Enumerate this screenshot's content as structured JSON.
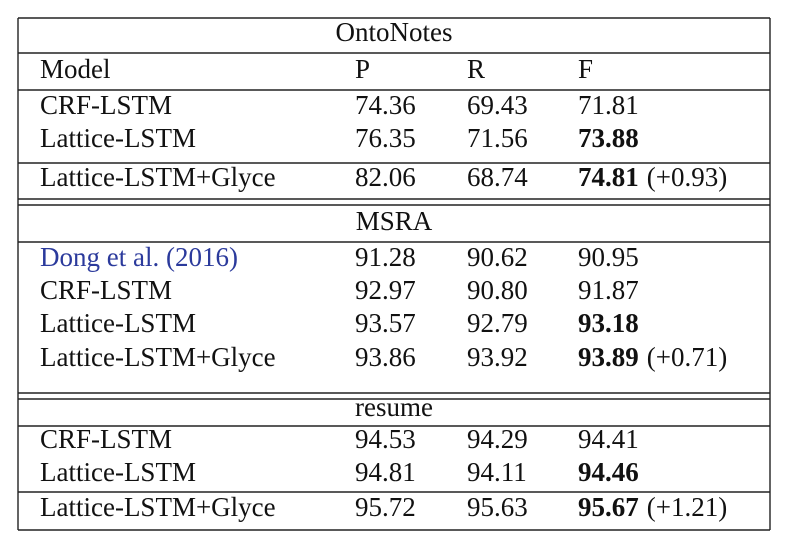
{
  "table": {
    "header": [
      "Model",
      "P",
      "R",
      "F"
    ],
    "sections": [
      {
        "title": "OntoNotes",
        "rows": [
          {
            "model": "CRF-LSTM",
            "p": "74.36",
            "r": "69.43",
            "f": "71.81"
          },
          {
            "model": "Lattice-LSTM",
            "p": "76.35",
            "r": "71.56",
            "f": "73.88",
            "bold": true
          },
          {
            "model": "Lattice-LSTM+Glyce",
            "p": "82.06",
            "r": "68.74",
            "f": "74.81",
            "bold": true,
            "delta": "(+0.93)"
          }
        ]
      },
      {
        "title": "MSRA",
        "rows": [
          {
            "model": "Dong et al. (2016)",
            "p": "91.28",
            "r": "90.62",
            "f": "90.95",
            "link": true
          },
          {
            "model": "CRF-LSTM",
            "p": "92.97",
            "r": "90.80",
            "f": "91.87"
          },
          {
            "model": "Lattice-LSTM",
            "p": "93.57",
            "r": "92.79",
            "f": "93.18",
            "bold": true
          },
          {
            "model": "Lattice-LSTM+Glyce",
            "p": "93.86",
            "r": "93.92",
            "f": "93.89",
            "bold": true,
            "delta": "(+0.71)"
          }
        ]
      },
      {
        "title": "resume",
        "rows": [
          {
            "model": "CRF-LSTM",
            "p": "94.53",
            "r": "94.29",
            "f": "94.41"
          },
          {
            "model": "Lattice-LSTM",
            "p": "94.81",
            "r": "94.11",
            "f": "94.46",
            "bold": true
          },
          {
            "model": "Lattice-LSTM+Glyce",
            "p": "95.72",
            "r": "95.63",
            "f": "95.67",
            "bold": true,
            "delta": "(+1.21)"
          }
        ]
      }
    ]
  }
}
